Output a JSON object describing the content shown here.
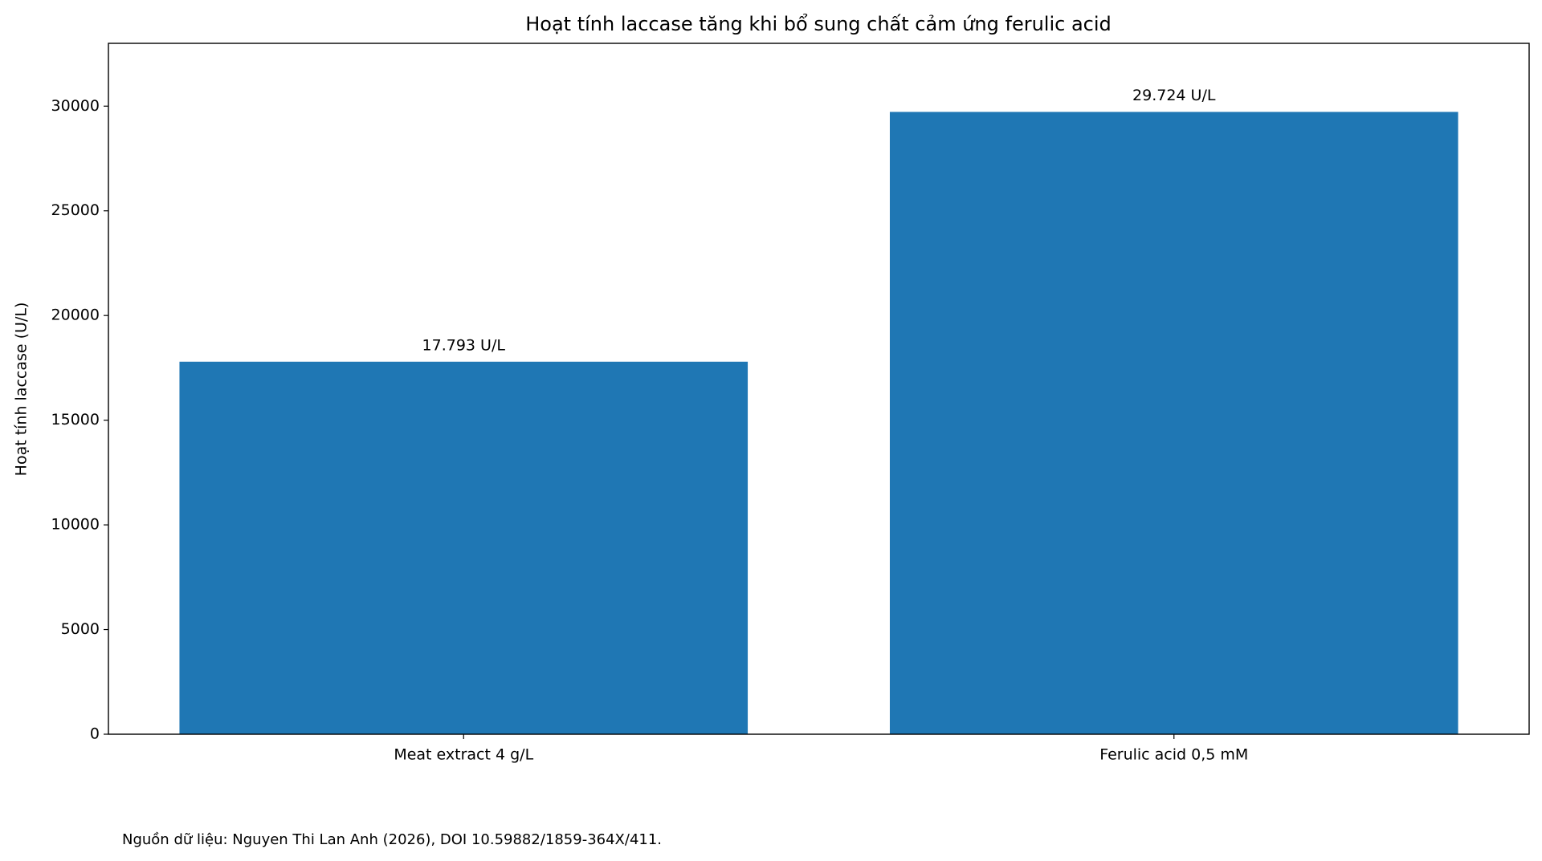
{
  "chart_data": {
    "type": "bar",
    "title": "Hoạt tính laccase tăng khi bổ sung chất cảm ứng ferulic acid",
    "y_label": "Hoạt tính laccase (U/L)",
    "categories": [
      "Meat extract 4 g/L",
      "Ferulic acid 0,5 mM"
    ],
    "values": [
      17793,
      29724
    ],
    "value_labels": [
      "17.793 U/L",
      "29.724 U/L"
    ],
    "color": "#1f77b4",
    "ylim": [
      0,
      33000
    ],
    "yticks": [
      0,
      5000,
      10000,
      15000,
      20000,
      25000,
      30000
    ],
    "grid": false,
    "source": "Nguồn dữ liệu: Nguyen Thi Lan Anh (2026), DOI 10.59882/1859-364X/411."
  }
}
